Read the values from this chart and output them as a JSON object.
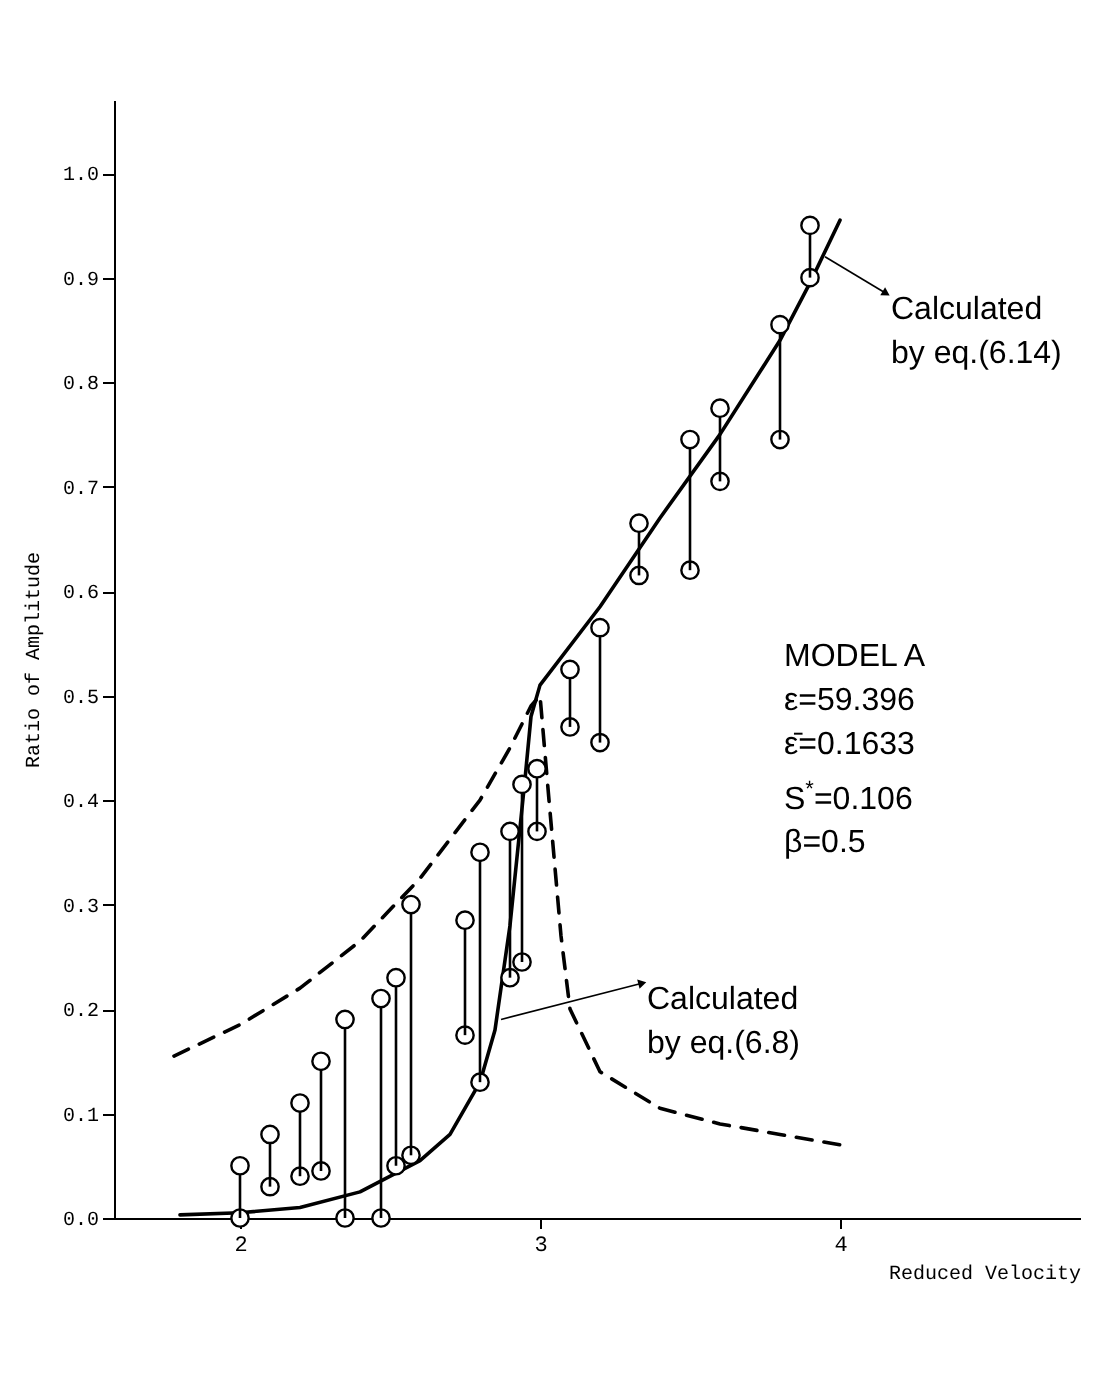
{
  "chart_data": {
    "type": "scatter",
    "xlabel": "Reduced Velocity",
    "ylabel": "Ratio of Amplitude",
    "xlim": [
      1.58,
      4.8
    ],
    "ylim": [
      0,
      1.07
    ],
    "xticks": [
      2,
      3,
      4
    ],
    "yticks": [
      {
        "value": 0,
        "label": "0.0"
      },
      {
        "value": 0.1,
        "label": "0.1"
      },
      {
        "value": 0.2,
        "label": "0.2"
      },
      {
        "value": 0.3,
        "label": "0.3"
      },
      {
        "value": 0.4,
        "label": "0.4"
      },
      {
        "value": 0.5,
        "label": "0.5"
      },
      {
        "value": 0.6,
        "label": "0.6"
      },
      {
        "value": 0.7,
        "label": "0.7"
      },
      {
        "value": 0.8,
        "label": "0.8"
      },
      {
        "value": 0.9,
        "label": "0.9"
      },
      {
        "value": 1,
        "label": "1.0"
      }
    ],
    "marker": "circle",
    "x": [
      2.0,
      2.1,
      2.2,
      2.27,
      2.35,
      2.47,
      2.52,
      2.57,
      2.75,
      2.8,
      2.9,
      2.94,
      2.99,
      3.1,
      3.2,
      3.33,
      3.5,
      3.6,
      3.8,
      3.9
    ],
    "series": [
      {
        "color": "#000000",
        "values": [
          0.0,
          0.03,
          0.04,
          0.045,
          0.0,
          0.0,
          0.05,
          0.06,
          0.175,
          0.13,
          0.23,
          0.245,
          0.37,
          0.47,
          0.455,
          0.615,
          0.62,
          0.705,
          0.745,
          0.9
        ]
      },
      {
        "color": "#000000",
        "values": [
          0.05,
          0.08,
          0.11,
          0.15,
          0.19,
          0.21,
          0.23,
          0.3,
          0.285,
          0.35,
          0.37,
          0.415,
          0.43,
          0.525,
          0.565,
          0.665,
          0.745,
          0.775,
          0.855,
          0.95
        ],
        "errors": [
          [
            0.0,
            0.05
          ],
          [
            0.03,
            0.08
          ],
          [
            0.04,
            0.11
          ],
          [
            0.045,
            0.15
          ],
          [
            0.0,
            0.19
          ],
          [
            0.0,
            0.21
          ],
          [
            0.05,
            0.23
          ],
          [
            0.06,
            0.3
          ],
          [
            0.175,
            0.285
          ],
          [
            0.13,
            0.35
          ],
          [
            0.23,
            0.37
          ],
          [
            0.245,
            0.415
          ],
          [
            0.37,
            0.43
          ],
          [
            0.47,
            0.525
          ],
          [
            0.455,
            0.565
          ],
          [
            0.615,
            0.665
          ],
          [
            0.62,
            0.745
          ],
          [
            0.705,
            0.775
          ],
          [
            0.745,
            0.855
          ],
          [
            0.9,
            0.95
          ]
        ]
      },
      {
        "type": "line",
        "color": "#000000",
        "line_style": "solid",
        "marker": "none",
        "x": [
          1.8,
          2.0,
          2.2,
          2.4,
          2.6,
          2.7,
          2.8,
          2.85,
          2.9,
          2.95,
          2.97,
          3.0,
          3.2,
          3.4,
          3.6,
          3.8,
          3.9,
          4.0
        ],
        "values": [
          0.003,
          0.005,
          0.01,
          0.025,
          0.055,
          0.08,
          0.13,
          0.18,
          0.28,
          0.42,
          0.48,
          0.51,
          0.585,
          0.67,
          0.75,
          0.84,
          0.895,
          0.955
        ]
      },
      {
        "type": "line",
        "color": "#000000",
        "line_style": "dashed",
        "marker": "none",
        "x": [
          1.78,
          2.0,
          2.2,
          2.4,
          2.6,
          2.8,
          2.9,
          2.97,
          3.0,
          3.03,
          3.07,
          3.1,
          3.2,
          3.4,
          3.6,
          3.8,
          4.0
        ],
        "values": [
          0.155,
          0.185,
          0.22,
          0.265,
          0.325,
          0.4,
          0.45,
          0.49,
          0.5,
          0.4,
          0.27,
          0.2,
          0.14,
          0.105,
          0.09,
          0.08,
          0.07
        ]
      }
    ],
    "annotations": [
      {
        "text": "Calculated by eq.(6.14)",
        "x": 3.95,
        "y": 0.92
      },
      {
        "text": "Calculated by eq.(6.8)",
        "x": 2.87,
        "y": 0.19
      },
      "MODEL A",
      "ε=59.396",
      "ε̄=0.1633",
      "S$^{*}$=0.106",
      "β=0.5"
    ]
  }
}
